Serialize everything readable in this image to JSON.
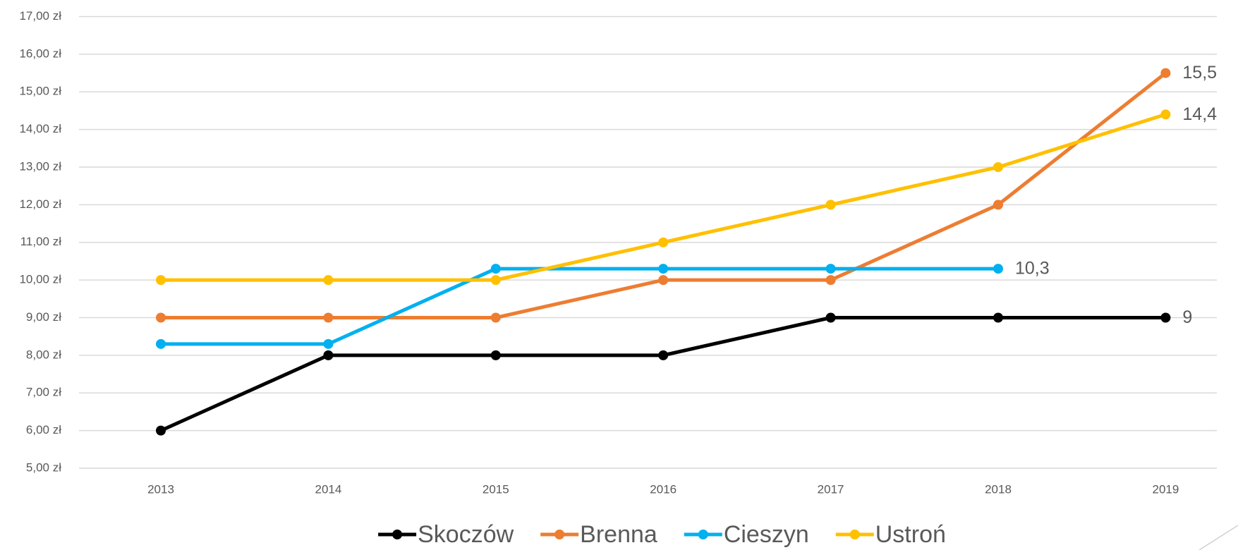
{
  "chart_data": {
    "type": "line",
    "categories": [
      "2013",
      "2014",
      "2015",
      "2016",
      "2017",
      "2018",
      "2019"
    ],
    "series": [
      {
        "name": "Skoczów",
        "color": "#000000",
        "values": [
          6,
          8,
          8,
          8,
          9,
          9,
          9
        ],
        "value_labels": [
          null,
          null,
          null,
          null,
          null,
          null,
          "9"
        ]
      },
      {
        "name": "Brenna",
        "color": "#ED7D31",
        "values": [
          9,
          9,
          9,
          10,
          10,
          12,
          15.5
        ],
        "value_labels": [
          null,
          null,
          null,
          null,
          null,
          null,
          "15,5"
        ]
      },
      {
        "name": "Cieszyn",
        "color": "#00B0F0",
        "values": [
          8.3,
          8.3,
          10.3,
          10.3,
          10.3,
          10.3,
          null
        ],
        "value_labels": [
          null,
          null,
          null,
          null,
          null,
          "10,3",
          null
        ]
      },
      {
        "name": "Ustroń",
        "color": "#FFC000",
        "values": [
          10,
          10,
          10,
          11,
          12,
          13,
          14.4
        ],
        "value_labels": [
          null,
          null,
          null,
          null,
          null,
          null,
          "14,4"
        ]
      }
    ],
    "ylim": [
      5,
      17
    ],
    "yticks": [
      {
        "value": 5,
        "label": "5,00 zł"
      },
      {
        "value": 6,
        "label": "6,00 zł"
      },
      {
        "value": 7,
        "label": "7,00 zł"
      },
      {
        "value": 8,
        "label": "8,00 zł"
      },
      {
        "value": 9,
        "label": "9,00 zł"
      },
      {
        "value": 10,
        "label": "10,00 zł"
      },
      {
        "value": 11,
        "label": "11,00 zł"
      },
      {
        "value": 12,
        "label": "12,00 zł"
      },
      {
        "value": 13,
        "label": "13,00 zł"
      },
      {
        "value": 14,
        "label": "14,00 zł"
      },
      {
        "value": 15,
        "label": "15,00 zł"
      },
      {
        "value": 16,
        "label": "16,00 zł"
      },
      {
        "value": 17,
        "label": "17,00 zł"
      }
    ],
    "grid": true,
    "legend": "bottom"
  }
}
